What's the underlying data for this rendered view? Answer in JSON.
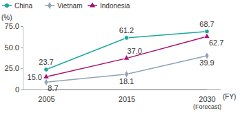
{
  "chart_data": {
    "type": "line",
    "y_label": "(%)",
    "x_label": "(FY)",
    "categories": [
      "2005",
      "2015",
      "2030\n(Forecast)"
    ],
    "series": [
      {
        "name": "China",
        "color": "#1aa89b",
        "marker": "circle",
        "values": [
          23.7,
          61.2,
          68.7
        ]
      },
      {
        "name": "Vietnam",
        "color": "#8fa3b4",
        "marker": "diamond",
        "values": [
          8.7,
          18.1,
          39.9
        ]
      },
      {
        "name": "Indonesia",
        "color": "#a8106e",
        "marker": "triangle",
        "values": [
          15.0,
          37.0,
          62.7
        ]
      }
    ],
    "ylim": [
      0,
      75
    ],
    "yticks": [
      0,
      {
        "value": 25,
        "label": "25.0"
      },
      {
        "value": 50,
        "label": "50.0"
      },
      {
        "value": 75,
        "label": "75.0"
      }
    ],
    "grid": false,
    "legend": "top",
    "data_labels": true
  }
}
